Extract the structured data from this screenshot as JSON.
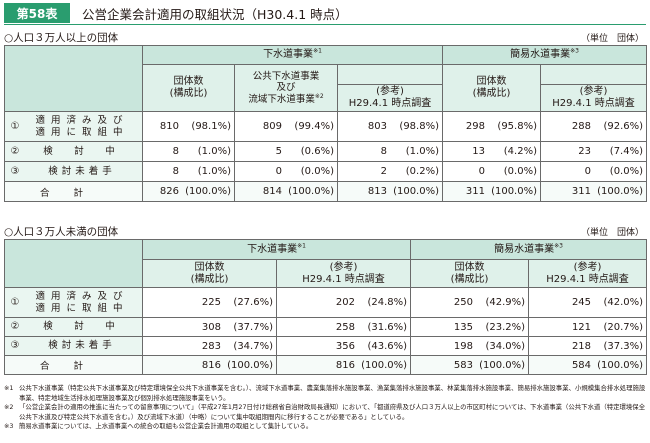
{
  "header": {
    "badge": "第58表",
    "title": "公営企業会計適用の取組状況（H30.4.1 時点）"
  },
  "section1": {
    "heading": "○人口３万人以上の団体",
    "unit": "（単位　団体）",
    "group_sewer": "下水道事業",
    "group_sewer_note": "※1",
    "group_simple": "簡易水道事業",
    "group_simple_note": "※3",
    "col_count": "団体数\n(構成比)",
    "col_public": "公共下水道事業\n及び\n流域下水道事業",
    "col_public_note": "※2",
    "col_ref": "(参考)\nH29.4.1 時点調査",
    "rows": [
      {
        "mark": "①",
        "label": "適用済み及び\n適用に取組中",
        "c1": "810",
        "p1": "(98.1%)",
        "c2": "809",
        "p2": "(99.4%)",
        "c3": "803",
        "p3": "(98.8%)",
        "c4": "298",
        "p4": "(95.8%)",
        "c5": "288",
        "p5": "(92.6%)"
      },
      {
        "mark": "②",
        "label": "検　討　中",
        "c1": "8",
        "p1": "(1.0%)",
        "c2": "5",
        "p2": "(0.6%)",
        "c3": "8",
        "p3": "(1.0%)",
        "c4": "13",
        "p4": "(4.2%)",
        "c5": "23",
        "p5": "(7.4%)"
      },
      {
        "mark": "③",
        "label": "検討未着手",
        "c1": "8",
        "p1": "(1.0%)",
        "c2": "0",
        "p2": "(0.0%)",
        "c3": "2",
        "p3": "(0.2%)",
        "c4": "0",
        "p4": "(0.0%)",
        "c5": "0",
        "p5": "(0.0%)"
      }
    ],
    "total": {
      "label": "合計",
      "c1": "826",
      "p1": "(100.0%)",
      "c2": "814",
      "p2": "(100.0%)",
      "c3": "813",
      "p3": "(100.0%)",
      "c4": "311",
      "p4": "(100.0%)",
      "c5": "311",
      "p5": "(100.0%)"
    }
  },
  "section2": {
    "heading": "○人口３万人未満の団体",
    "unit": "（単位　団体）",
    "group_sewer": "下水道事業",
    "group_sewer_note": "※1",
    "group_simple": "簡易水道事業",
    "group_simple_note": "※3",
    "col_count": "団体数\n(構成比)",
    "col_ref": "(参考)\nH29.4.1 時点調査",
    "rows": [
      {
        "mark": "①",
        "label": "適用済み及び\n適用に取組中",
        "c1": "225",
        "p1": "(27.6%)",
        "c2": "202",
        "p2": "(24.8%)",
        "c3": "250",
        "p3": "(42.9%)",
        "c4": "245",
        "p4": "(42.0%)"
      },
      {
        "mark": "②",
        "label": "検　討　中",
        "c1": "308",
        "p1": "(37.7%)",
        "c2": "258",
        "p2": "(31.6%)",
        "c3": "135",
        "p3": "(23.2%)",
        "c4": "121",
        "p4": "(20.7%)"
      },
      {
        "mark": "③",
        "label": "検討未着手",
        "c1": "283",
        "p1": "(34.7%)",
        "c2": "356",
        "p2": "(43.6%)",
        "c3": "198",
        "p3": "(34.0%)",
        "c4": "218",
        "p4": "(37.3%)"
      }
    ],
    "total": {
      "label": "合計",
      "c1": "816",
      "p1": "(100.0%)",
      "c2": "816",
      "p2": "(100.0%)",
      "c3": "583",
      "p3": "(100.0%)",
      "c4": "584",
      "p4": "(100.0%)"
    }
  },
  "notes": [
    {
      "mark": "※1",
      "text": "公共下水道事業（特定公共下水道事業及び特定環境保全公共下水道事業を含む。）、流域下水道事業、農業集落排水施設事業、漁業集落排水施設事業、林業集落排水施設事業、簡易排水施設事業、小規模集合排水処理施設事業、特定地域生活排水処理施設事業及び個別排水処理施設事業をいう。"
    },
    {
      "mark": "※2",
      "text": "「公営企業会計の適用の推進に当たっての留意事項について」（平成27年1月27日付け総務省自治財政局長通知）において、「都道府県及び人口３万人以上の市区町村については、下水道事業（公共下水道（特定環境保全公共下水道及び特定公共下水道を含む。）及び流域下水道）（中略）について集中取組期間内に移行することが必要である」としている。"
    },
    {
      "mark": "※3",
      "text": "簡易水道事業については、上水道事業への統合の取組も公営企業会計適用の取組として集計している。"
    }
  ]
}
